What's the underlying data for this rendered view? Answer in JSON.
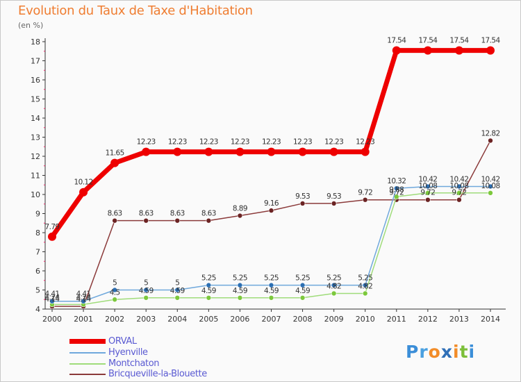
{
  "header": {
    "title": "Evolution du Taux de Taxe d'Habitation",
    "subtitle": "(en %)"
  },
  "logo": {
    "text": "Proxiti",
    "letters": [
      {
        "ch": "P",
        "color": "#3b8ed8"
      },
      {
        "ch": "r",
        "color": "#4aa0e0"
      },
      {
        "ch": "o",
        "color": "#f28c28"
      },
      {
        "ch": "x",
        "color": "#2f6fb7"
      },
      {
        "ch": "i",
        "color": "#f28c28"
      },
      {
        "ch": "t",
        "color": "#7cbf3a"
      },
      {
        "ch": "i",
        "color": "#3b8ed8"
      }
    ]
  },
  "chart_data": {
    "type": "line",
    "title": "Evolution du Taux de Taxe d'Habitation",
    "ylabel": "(en %)",
    "xlabel": "",
    "x": [
      "2000",
      "2001",
      "2002",
      "2003",
      "2004",
      "2005",
      "2006",
      "2007",
      "2008",
      "2009",
      "2010",
      "2011",
      "2012",
      "2013",
      "2014"
    ],
    "ylim": [
      4,
      18
    ],
    "yticks": [
      4,
      5,
      6,
      7,
      8,
      9,
      10,
      11,
      12,
      13,
      14,
      15,
      16,
      17,
      18
    ],
    "grid": false,
    "legend_position": "bottom-left",
    "series": [
      {
        "name": "ORVAL",
        "color": "#ee0000",
        "width": 7,
        "marker": 6,
        "values": [
          7.79,
          10.12,
          11.65,
          12.23,
          12.23,
          12.23,
          12.23,
          12.23,
          12.23,
          12.23,
          12.23,
          17.54,
          17.54,
          17.54,
          17.54
        ],
        "labels": [
          "7.79",
          "10.12",
          "11.65",
          "12.23",
          "12.23",
          "12.23",
          "12.23",
          "12.23",
          "12.23",
          "12.23",
          "12.23",
          "17.54",
          "17.54",
          "17.54",
          "17.54"
        ]
      },
      {
        "name": "Hyenville",
        "color": "#6fa8dc",
        "marker_color": "#2c6fb3",
        "width": 1.5,
        "marker": 3.5,
        "values": [
          4.41,
          4.41,
          5,
          5,
          5,
          5.25,
          5.25,
          5.25,
          5.25,
          5.25,
          5.25,
          10.32,
          10.42,
          10.42,
          10.42
        ],
        "labels": [
          "4.41",
          "4.41",
          "5",
          "5",
          "5",
          "5.25",
          "5.25",
          "5.25",
          "5.25",
          "5.25",
          "5.25",
          "10.32",
          "10.42",
          "10.42",
          "10.42"
        ]
      },
      {
        "name": "Montchaton",
        "color": "#9fdc7a",
        "marker_color": "#7cc83c",
        "width": 1.5,
        "marker": 3.5,
        "values": [
          4.24,
          4.24,
          4.5,
          4.59,
          4.59,
          4.59,
          4.59,
          4.59,
          4.59,
          4.82,
          4.82,
          9.88,
          10.08,
          10.08,
          10.08
        ],
        "labels": [
          "4.24",
          "4.24",
          "4.5",
          "4.59",
          "4.59",
          "4.59",
          "4.59",
          "4.59",
          "4.59",
          "4.82",
          "4.82",
          "9.88",
          "10.08",
          "10.08",
          "10.08"
        ]
      },
      {
        "name": "Bricqueville-la-Blouette",
        "color": "#8b3a3a",
        "marker_color": "#6b2323",
        "width": 1.5,
        "marker": 3.5,
        "values": [
          4.14,
          4.14,
          8.63,
          8.63,
          8.63,
          8.63,
          8.89,
          9.16,
          9.53,
          9.53,
          9.72,
          9.72,
          9.72,
          9.72,
          12.82
        ],
        "labels": [
          "4.14",
          "4.14",
          "8.63",
          "8.63",
          "8.63",
          "8.63",
          "8.89",
          "9.16",
          "9.53",
          "9.53",
          "9.72",
          "9.72",
          "9.72",
          "9.72",
          "12.82"
        ]
      }
    ]
  }
}
